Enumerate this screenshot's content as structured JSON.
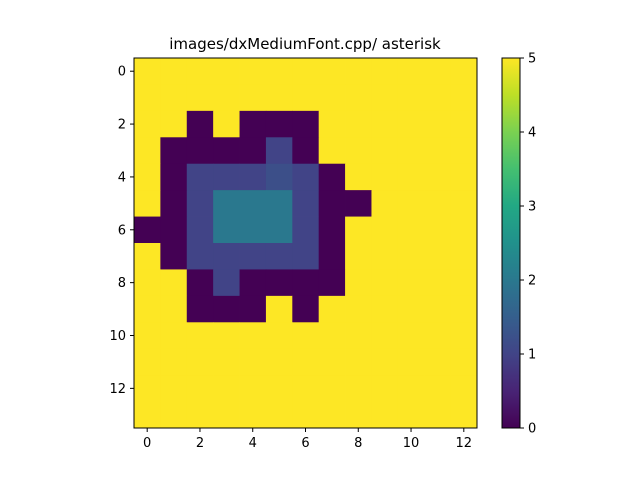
{
  "chart_data": {
    "type": "heatmap",
    "title": "images/dxMediumFont.cpp/ asterisk",
    "xlabel": "",
    "ylabel": "",
    "colormap": "viridis",
    "vmin": 0,
    "vmax": 5,
    "x_ticks": [
      "0",
      "2",
      "4",
      "6",
      "8",
      "10",
      "12"
    ],
    "y_ticks": [
      "0",
      "2",
      "4",
      "6",
      "8",
      "10",
      "12"
    ],
    "colorbar_ticks": [
      "0",
      "1",
      "2",
      "3",
      "4",
      "5"
    ],
    "grid": [
      [
        5,
        5,
        5,
        5,
        5,
        5,
        5,
        5,
        5,
        5,
        5,
        5,
        5
      ],
      [
        5,
        5,
        5,
        5,
        5,
        5,
        5,
        5,
        5,
        5,
        5,
        5,
        5
      ],
      [
        5,
        5,
        0,
        5,
        0,
        0,
        0,
        5,
        5,
        5,
        5,
        5,
        5
      ],
      [
        5,
        0,
        0,
        0,
        0,
        1,
        0,
        5,
        5,
        5,
        5,
        5,
        5
      ],
      [
        5,
        0,
        1,
        1,
        1,
        1.2,
        1,
        0,
        5,
        5,
        5,
        5,
        5
      ],
      [
        5,
        0,
        1,
        2,
        2,
        2,
        1,
        0,
        0,
        5,
        5,
        5,
        5
      ],
      [
        0,
        0,
        1,
        2,
        2,
        2,
        1,
        0,
        5,
        5,
        5,
        5,
        5
      ],
      [
        5,
        0,
        1,
        1,
        1,
        1,
        1,
        0,
        5,
        5,
        5,
        5,
        5
      ],
      [
        5,
        5,
        0,
        1,
        0,
        0,
        0,
        0,
        5,
        5,
        5,
        5,
        5
      ],
      [
        5,
        5,
        0,
        0,
        0,
        5,
        0,
        5,
        5,
        5,
        5,
        5,
        5
      ],
      [
        5,
        5,
        5,
        5,
        5,
        5,
        5,
        5,
        5,
        5,
        5,
        5,
        5
      ],
      [
        5,
        5,
        5,
        5,
        5,
        5,
        5,
        5,
        5,
        5,
        5,
        5,
        5
      ],
      [
        5,
        5,
        5,
        5,
        5,
        5,
        5,
        5,
        5,
        5,
        5,
        5,
        5
      ],
      [
        5,
        5,
        5,
        5,
        5,
        5,
        5,
        5,
        5,
        5,
        5,
        5,
        5
      ]
    ]
  }
}
